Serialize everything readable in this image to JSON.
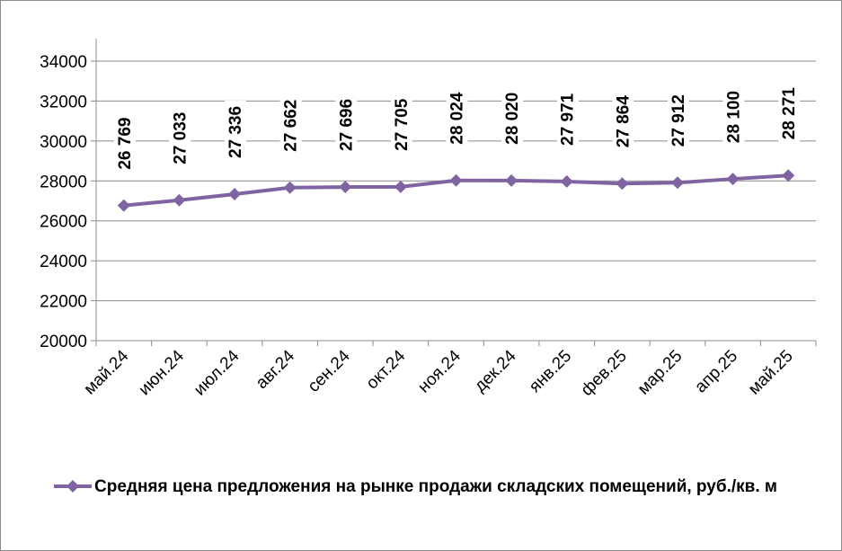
{
  "chart_data": {
    "type": "line",
    "categories": [
      "май.24",
      "июн.24",
      "июл.24",
      "авг.24",
      "сен.24",
      "окт.24",
      "ноя.24",
      "дек.24",
      "янв.25",
      "фев.25",
      "мар.25",
      "апр.25",
      "май.25"
    ],
    "series": [
      {
        "name": "Средняя цена предложения на рынке продажи складских помещений, руб./кв. м",
        "values": [
          26769,
          27033,
          27336,
          27662,
          27696,
          27705,
          28024,
          28020,
          27971,
          27864,
          27912,
          28100,
          28271
        ],
        "labels": [
          "26 769",
          "27 033",
          "27 336",
          "27 662",
          "27 696",
          "27 705",
          "28 024",
          "28 020",
          "27 971",
          "27 864",
          "27 912",
          "28 100",
          "28 271"
        ],
        "color": "#8064a2"
      }
    ],
    "yticks": [
      "20000",
      "22000",
      "24000",
      "26000",
      "28000",
      "30000",
      "32000",
      "34000"
    ],
    "ylim": [
      20000,
      34000
    ],
    "grid": true,
    "legend": "bottom"
  }
}
